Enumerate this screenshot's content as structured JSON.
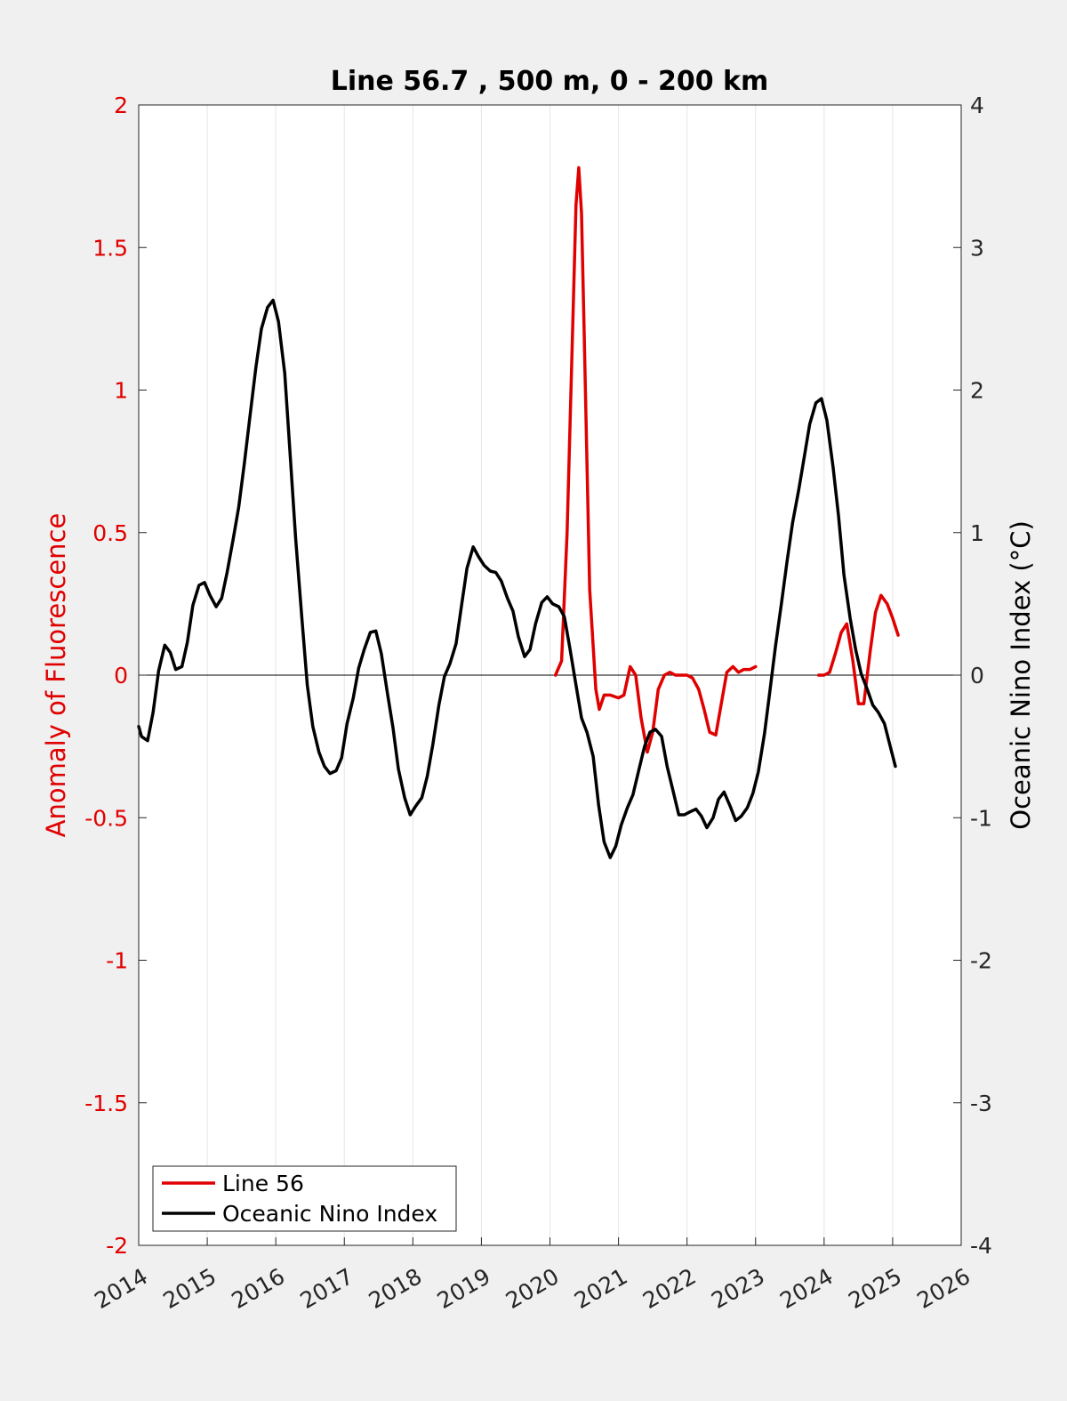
{
  "chart_data": {
    "type": "line",
    "title": "Line 56.7 , 500 m, 0 - 200 km",
    "xlabel": "",
    "ylabel_left": "Anomaly of Fluorescence",
    "ylabel_right": "Oceanic Nino Index (°C)",
    "xlim": [
      2014,
      2026
    ],
    "ylim_left": [
      -2,
      2
    ],
    "ylim_right": [
      -4,
      4
    ],
    "x_ticks": [
      "2014",
      "2015",
      "2016",
      "2017",
      "2018",
      "2019",
      "2020",
      "2021",
      "2022",
      "2023",
      "2024",
      "2025",
      "2026"
    ],
    "y_ticks_left": [
      "2",
      "1.5",
      "1",
      "0.5",
      "0",
      "-0.5",
      "-1",
      "-1.5",
      "-2"
    ],
    "y_ticks_right": [
      "4",
      "3",
      "2",
      "1",
      "0",
      "-1",
      "-2",
      "-3",
      "-4"
    ],
    "grid": "vertical",
    "zero_line": true,
    "legend": {
      "location": "bottom-left",
      "entries": [
        {
          "label": "Line 56",
          "color": "#e00000"
        },
        {
          "label": "Oceanic Nino Index",
          "color": "#000000"
        }
      ]
    },
    "series": [
      {
        "name": "Line 56",
        "axis": "left",
        "color": "#e00000",
        "segments": [
          {
            "x": [
              2020.08,
              2020.17,
              2020.25,
              2020.33,
              2020.38,
              2020.42,
              2020.46,
              2020.5,
              2020.58,
              2020.67,
              2020.72,
              2020.79,
              2020.88,
              2021.0,
              2021.08,
              2021.17,
              2021.25,
              2021.33,
              2021.42,
              2021.5,
              2021.58,
              2021.67,
              2021.75,
              2021.83,
              2021.92,
              2022.0,
              2022.08,
              2022.17,
              2022.25,
              2022.33,
              2022.42,
              2022.5,
              2022.58,
              2022.67,
              2022.75,
              2022.83,
              2022.92,
              2023.0
            ],
            "y": [
              0.0,
              0.05,
              0.5,
              1.2,
              1.65,
              1.78,
              1.62,
              1.2,
              0.3,
              -0.05,
              -0.12,
              -0.07,
              -0.07,
              -0.08,
              -0.07,
              0.03,
              0.0,
              -0.15,
              -0.27,
              -0.2,
              -0.05,
              0.0,
              0.01,
              0.0,
              0.0,
              0.0,
              -0.01,
              -0.05,
              -0.12,
              -0.2,
              -0.21,
              -0.1,
              0.01,
              0.03,
              0.01,
              0.02,
              0.02,
              0.03
            ]
          },
          {
            "x": [
              2023.92,
              2024.0,
              2024.08,
              2024.17,
              2024.25,
              2024.33,
              2024.42,
              2024.5,
              2024.58,
              2024.67,
              2024.75,
              2024.83,
              2024.92,
              2025.0,
              2025.08
            ],
            "y": [
              0.0,
              0.0,
              0.01,
              0.08,
              0.15,
              0.18,
              0.05,
              -0.1,
              -0.1,
              0.08,
              0.22,
              0.28,
              0.25,
              0.2,
              0.14
            ]
          }
        ]
      },
      {
        "name": "Oceanic Nino Index",
        "axis": "right",
        "color": "#000000",
        "x": [
          2014.0,
          2014.04,
          2014.13,
          2014.21,
          2014.29,
          2014.38,
          2014.46,
          2014.54,
          2014.63,
          2014.71,
          2014.79,
          2014.88,
          2014.96,
          2015.04,
          2015.13,
          2015.21,
          2015.29,
          2015.38,
          2015.46,
          2015.54,
          2015.63,
          2015.71,
          2015.79,
          2015.88,
          2015.96,
          2016.04,
          2016.13,
          2016.21,
          2016.29,
          2016.38,
          2016.46,
          2016.54,
          2016.63,
          2016.71,
          2016.79,
          2016.88,
          2016.96,
          2017.04,
          2017.13,
          2017.21,
          2017.29,
          2017.38,
          2017.46,
          2017.54,
          2017.63,
          2017.71,
          2017.79,
          2017.88,
          2017.96,
          2018.04,
          2018.13,
          2018.21,
          2018.29,
          2018.38,
          2018.46,
          2018.54,
          2018.63,
          2018.71,
          2018.79,
          2018.88,
          2018.96,
          2019.04,
          2019.13,
          2019.21,
          2019.29,
          2019.38,
          2019.46,
          2019.54,
          2019.63,
          2019.71,
          2019.79,
          2019.88,
          2019.96,
          2020.04,
          2020.13,
          2020.21,
          2020.29,
          2020.38,
          2020.46,
          2020.54,
          2020.63,
          2020.71,
          2020.79,
          2020.88,
          2020.96,
          2021.04,
          2021.13,
          2021.21,
          2021.29,
          2021.38,
          2021.46,
          2021.54,
          2021.63,
          2021.71,
          2021.79,
          2021.88,
          2021.96,
          2022.04,
          2022.13,
          2022.21,
          2022.29,
          2022.38,
          2022.46,
          2022.54,
          2022.63,
          2022.71,
          2022.79,
          2022.88,
          2022.96,
          2023.04,
          2023.13,
          2023.21,
          2023.29,
          2023.38,
          2023.46,
          2023.54,
          2023.63,
          2023.71,
          2023.79,
          2023.88,
          2023.96,
          2024.04,
          2024.13,
          2024.21,
          2024.29,
          2024.38,
          2024.46,
          2024.54,
          2024.63,
          2024.71,
          2024.79,
          2024.88,
          2024.96,
          2025.04
        ],
        "y": [
          -0.36,
          -0.43,
          -0.46,
          -0.26,
          0.03,
          0.21,
          0.16,
          0.04,
          0.06,
          0.23,
          0.49,
          0.63,
          0.65,
          0.56,
          0.48,
          0.54,
          0.72,
          0.96,
          1.18,
          1.48,
          1.84,
          2.16,
          2.43,
          2.58,
          2.63,
          2.48,
          2.12,
          1.54,
          0.96,
          0.4,
          -0.07,
          -0.36,
          -0.54,
          -0.64,
          -0.69,
          -0.67,
          -0.58,
          -0.34,
          -0.16,
          0.05,
          0.18,
          0.3,
          0.31,
          0.15,
          -0.13,
          -0.37,
          -0.66,
          -0.86,
          -0.98,
          -0.92,
          -0.86,
          -0.71,
          -0.49,
          -0.21,
          -0.01,
          0.08,
          0.22,
          0.49,
          0.75,
          0.9,
          0.83,
          0.77,
          0.73,
          0.72,
          0.66,
          0.54,
          0.45,
          0.27,
          0.13,
          0.18,
          0.36,
          0.51,
          0.55,
          0.5,
          0.48,
          0.41,
          0.19,
          -0.07,
          -0.3,
          -0.4,
          -0.57,
          -0.91,
          -1.17,
          -1.28,
          -1.2,
          -1.05,
          -0.93,
          -0.84,
          -0.68,
          -0.5,
          -0.4,
          -0.38,
          -0.43,
          -0.64,
          -0.8,
          -0.98,
          -0.98,
          -0.96,
          -0.94,
          -0.99,
          -1.07,
          -1.0,
          -0.87,
          -0.82,
          -0.92,
          -1.02,
          -0.99,
          -0.93,
          -0.83,
          -0.68,
          -0.41,
          -0.11,
          0.2,
          0.51,
          0.8,
          1.07,
          1.3,
          1.53,
          1.76,
          1.91,
          1.94,
          1.79,
          1.46,
          1.12,
          0.7,
          0.4,
          0.18,
          0.01,
          -0.1,
          -0.21,
          -0.26,
          -0.34,
          -0.49,
          -0.64
        ]
      }
    ]
  }
}
